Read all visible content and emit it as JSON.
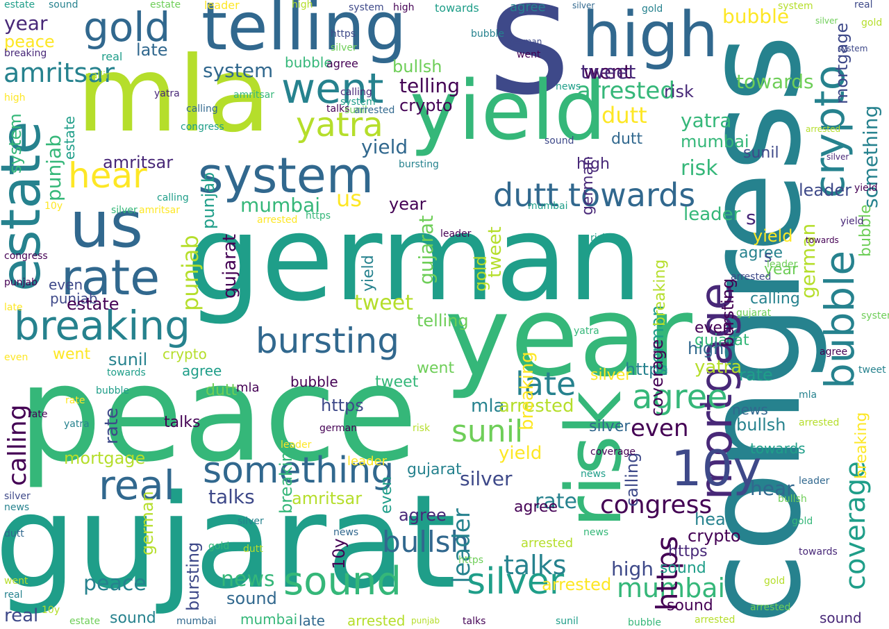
{
  "colors": {
    "background": "#ffffff",
    "palette": [
      "#440154",
      "#482878",
      "#3e4989",
      "#31688e",
      "#26828e",
      "#1f9e89",
      "#35b779",
      "#6ece58",
      "#b5de2b",
      "#fde725"
    ]
  },
  "words": [
    {
      "text": "gujarat",
      "color": "#1f9e89"
    },
    {
      "text": "peace",
      "color": "#35b779"
    },
    {
      "text": "german",
      "color": "#1f9e89"
    },
    {
      "text": "congress",
      "color": "#26828e"
    },
    {
      "text": "year",
      "color": "#35b779"
    },
    {
      "text": "mla",
      "color": "#b5de2b"
    },
    {
      "text": "s",
      "color": "#3e4989"
    },
    {
      "text": "telling",
      "color": "#31688e"
    },
    {
      "text": "yield",
      "color": "#35b779"
    },
    {
      "text": "risk",
      "color": "#35b779"
    },
    {
      "text": "high",
      "color": "#31688e"
    },
    {
      "text": "estate",
      "color": "#26828e"
    },
    {
      "text": "us",
      "color": "#31688e"
    },
    {
      "text": "system",
      "color": "#31688e"
    },
    {
      "text": "mortgage",
      "color": "#482878"
    },
    {
      "text": "bubble",
      "color": "#26828e"
    },
    {
      "text": "crypto",
      "color": "#26828e"
    },
    {
      "text": "rate",
      "color": "#31688e"
    },
    {
      "text": "breaking",
      "color": "#26828e"
    },
    {
      "text": "went",
      "color": "#26828e"
    },
    {
      "text": "gold",
      "color": "#31688e"
    },
    {
      "text": "hear",
      "color": "#fde725"
    },
    {
      "text": "amritsar",
      "color": "#440154"
    },
    {
      "text": "dutt",
      "color": "#31688e"
    },
    {
      "text": "towards",
      "color": "#31688e"
    },
    {
      "text": "bursting",
      "color": "#31688e"
    },
    {
      "text": "real",
      "color": "#31688e"
    },
    {
      "text": "something",
      "color": "#31688e"
    },
    {
      "text": "mumbai",
      "color": "#31688e"
    },
    {
      "text": "sound",
      "color": "#35b779"
    },
    {
      "text": "silver",
      "color": "#1f9e89"
    },
    {
      "text": "10y",
      "color": "#3e4989"
    },
    {
      "text": "agree",
      "color": "#35b779"
    },
    {
      "text": "sunil",
      "color": "#6ece58"
    },
    {
      "text": "late",
      "color": "#26828e"
    },
    {
      "text": "bullsh",
      "color": "#31688e"
    },
    {
      "text": "https",
      "color": "#440154"
    },
    {
      "text": "talks",
      "color": "#440154"
    },
    {
      "text": "arrested",
      "color": "#31688e"
    },
    {
      "text": "tweet",
      "color": "#31688e"
    },
    {
      "text": "calling",
      "color": "#b5de2b"
    },
    {
      "text": "yatra",
      "color": "#b5de2b"
    },
    {
      "text": "leader",
      "color": "#35b779"
    },
    {
      "text": "news",
      "color": "#31688e"
    },
    {
      "text": "punjab",
      "color": "#31688e"
    },
    {
      "text": "even",
      "color": "#26828e"
    },
    {
      "text": "coverage",
      "color": "#1f9e89"
    }
  ]
}
